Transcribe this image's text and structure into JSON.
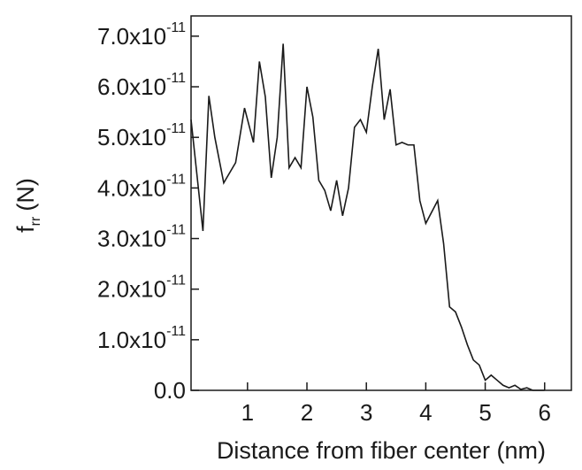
{
  "chart_data": {
    "type": "line",
    "xlabel": "Distance from fiber center (nm)",
    "ylabel_main": "f",
    "ylabel_sub": "rr",
    "ylabel_unit": "(N)",
    "xlim": [
      0.05,
      6.45
    ],
    "ylim": [
      0,
      7.4e-11
    ],
    "x_ticks": [
      1,
      2,
      3,
      4,
      5,
      6
    ],
    "x_tick_labels": [
      "1",
      "2",
      "3",
      "4",
      "5",
      "6"
    ],
    "y_ticks": [
      0,
      1e-11,
      2e-11,
      3e-11,
      4e-11,
      5e-11,
      6e-11,
      7e-11
    ],
    "y_tick_labels": [
      {
        "mantissa": "0.0",
        "exp": ""
      },
      {
        "mantissa": "1.0x10",
        "exp": "-11"
      },
      {
        "mantissa": "2.0x10",
        "exp": "-11"
      },
      {
        "mantissa": "3.0x10",
        "exp": "-11"
      },
      {
        "mantissa": "4.0x10",
        "exp": "-11"
      },
      {
        "mantissa": "5.0x10",
        "exp": "-11"
      },
      {
        "mantissa": "6.0x10",
        "exp": "-11"
      },
      {
        "mantissa": "7.0x10",
        "exp": "-11"
      }
    ],
    "grid": false,
    "line_color": "#1a1a1a",
    "series": [
      {
        "x": [
          0.05,
          0.25,
          0.35,
          0.45,
          0.6,
          0.8,
          0.95,
          1.1,
          1.2,
          1.3,
          1.4,
          1.5,
          1.6,
          1.7,
          1.8,
          1.9,
          2.0,
          2.1,
          2.2,
          2.3,
          2.4,
          2.5,
          2.6,
          2.7,
          2.8,
          2.9,
          3.0,
          3.1,
          3.2,
          3.3,
          3.4,
          3.5,
          3.6,
          3.7,
          3.8,
          3.9,
          4.0,
          4.2,
          4.3,
          4.4,
          4.5,
          4.6,
          4.7,
          4.8,
          4.9,
          5.0,
          5.1,
          5.2,
          5.3,
          5.4,
          5.5,
          5.6,
          5.7,
          5.8,
          5.9,
          6.0
        ],
        "y": [
          5.35e-11,
          3.15e-11,
          5.82e-11,
          5e-11,
          4.1e-11,
          4.5e-11,
          5.58e-11,
          4.9e-11,
          6.5e-11,
          5.8e-11,
          4.2e-11,
          5e-11,
          6.85e-11,
          4.4e-11,
          4.6e-11,
          4.4e-11,
          6e-11,
          5.4e-11,
          4.15e-11,
          3.95e-11,
          3.55e-11,
          4.15e-11,
          3.45e-11,
          4e-11,
          5.2e-11,
          5.35e-11,
          5.1e-11,
          6e-11,
          6.75e-11,
          5.35e-11,
          5.95e-11,
          4.85e-11,
          4.9e-11,
          4.85e-11,
          4.85e-11,
          3.75e-11,
          3.3e-11,
          3.75e-11,
          2.9e-11,
          1.65e-11,
          1.55e-11,
          1.25e-11,
          9e-12,
          6e-12,
          5e-12,
          2e-12,
          3e-12,
          2e-12,
          1e-12,
          5e-13,
          1e-12,
          2e-13,
          5e-13,
          0,
          0,
          0
        ]
      }
    ]
  }
}
